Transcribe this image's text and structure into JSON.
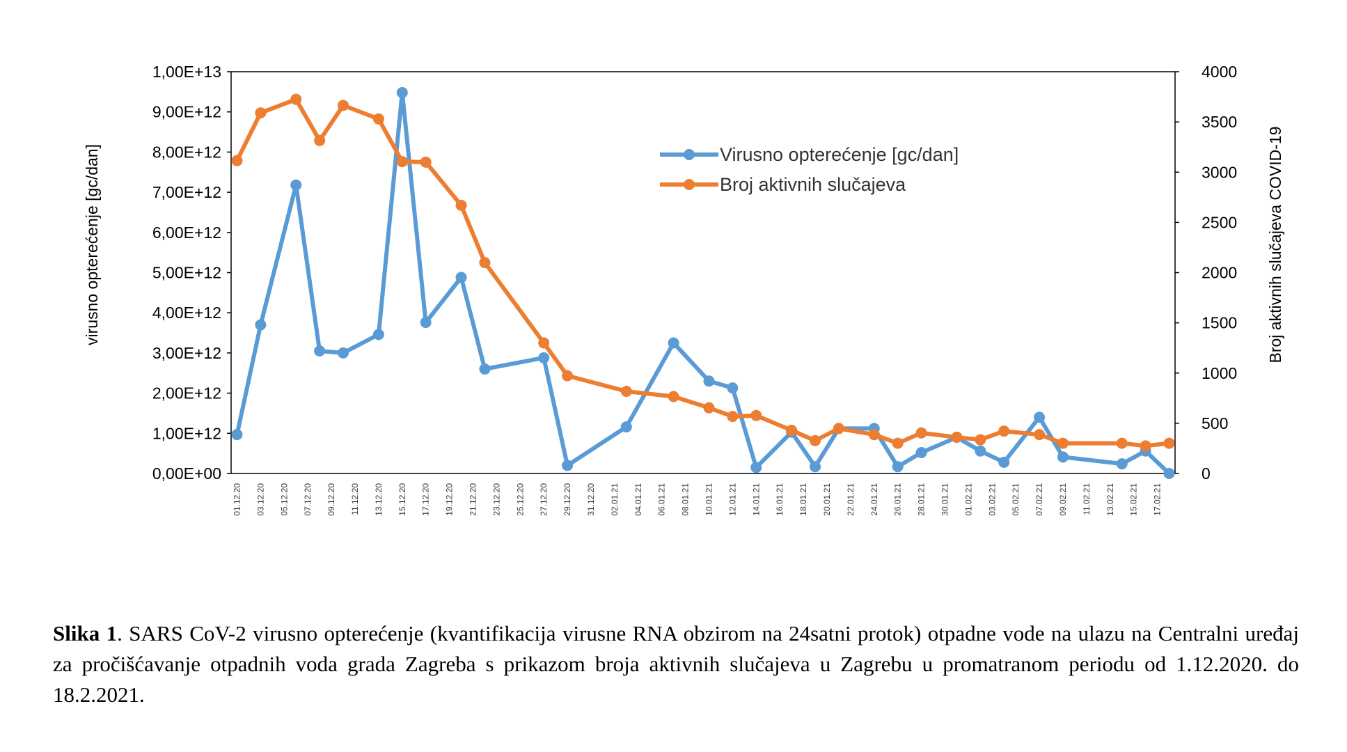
{
  "chart_data": {
    "type": "line",
    "title": "",
    "xlabel": "",
    "ylabel": "virusno opterećenje [gc/dan]",
    "y2label": "Broj aktivnih slučajeva COVID-19",
    "ylim": [
      0,
      10000000000000.0
    ],
    "y2lim": [
      0,
      4000
    ],
    "yticks": [
      "0,00E+00",
      "1,00E+12",
      "2,00E+12",
      "3,00E+12",
      "4,00E+12",
      "5,00E+12",
      "6,00E+12",
      "7,00E+12",
      "8,00E+12",
      "9,00E+12",
      "1,00E+13"
    ],
    "y2ticks": [
      "0",
      "500",
      "1000",
      "1500",
      "2000",
      "2500",
      "3000",
      "3500",
      "4000"
    ],
    "xticks": [
      "01.12.20",
      "03.12.20",
      "05.12.20",
      "07.12.20",
      "09.12.20",
      "11.12.20",
      "13.12.20",
      "15.12.20",
      "17.12.20",
      "19.12.20",
      "21.12.20",
      "23.12.20",
      "25.12.20",
      "27.12.20",
      "29.12.20",
      "31.12.20",
      "02.01.21",
      "04.01.21",
      "06.01.21",
      "08.01.21",
      "10.01.21",
      "12.01.21",
      "14.01.21",
      "16.01.21",
      "18.01.21",
      "20.01.21",
      "22.01.21",
      "24.01.21",
      "26.01.21",
      "28.01.21",
      "30.01.21",
      "01.02.21",
      "03.02.21",
      "05.02.21",
      "07.02.21",
      "09.02.21",
      "11.02.21",
      "13.02.21",
      "15.02.21",
      "17.02.21"
    ],
    "grid": false,
    "legend_position": "top-center",
    "series": [
      {
        "name": "Virusno opterećenje [gc/dan]",
        "axis": "left",
        "color": "#5B9BD5",
        "points": [
          [
            "01.12.20",
            970000000000.0
          ],
          [
            "03.12.20",
            3700000000000.0
          ],
          [
            "06.12.20",
            7180000000000.0
          ],
          [
            "08.12.20",
            3050000000000.0
          ],
          [
            "10.12.20",
            3000000000000.0
          ],
          [
            "13.12.20",
            3460000000000.0
          ],
          [
            "15.12.20",
            9480000000000.0
          ],
          [
            "17.12.20",
            3760000000000.0
          ],
          [
            "20.12.20",
            4880000000000.0
          ],
          [
            "22.12.20",
            2600000000000.0
          ],
          [
            "27.12.20",
            2880000000000.0
          ],
          [
            "29.12.20",
            200000000000.0
          ],
          [
            "03.01.21",
            1160000000000.0
          ],
          [
            "07.01.21",
            3250000000000.0
          ],
          [
            "10.01.21",
            2300000000000.0
          ],
          [
            "12.01.21",
            2130000000000.0
          ],
          [
            "14.01.21",
            150000000000.0
          ],
          [
            "17.01.21",
            1030000000000.0
          ],
          [
            "19.01.21",
            170000000000.0
          ],
          [
            "21.01.21",
            1120000000000.0
          ],
          [
            "24.01.21",
            1120000000000.0
          ],
          [
            "26.01.21",
            170000000000.0
          ],
          [
            "28.01.21",
            520000000000.0
          ],
          [
            "31.01.21",
            900000000000.0
          ],
          [
            "02.02.21",
            560000000000.0
          ],
          [
            "04.02.21",
            280000000000.0
          ],
          [
            "07.02.21",
            1400000000000.0
          ],
          [
            "09.02.21",
            410000000000.0
          ],
          [
            "14.02.21",
            240000000000.0
          ],
          [
            "16.02.21",
            560000000000.0
          ],
          [
            "18.02.21",
            0.0
          ]
        ]
      },
      {
        "name": "Broj aktivnih slučajeva",
        "axis": "right",
        "color": "#ED7D31",
        "points": [
          [
            "01.12.20",
            3115
          ],
          [
            "03.12.20",
            3590
          ],
          [
            "06.12.20",
            3725
          ],
          [
            "08.12.20",
            3315
          ],
          [
            "10.12.20",
            3665
          ],
          [
            "13.12.20",
            3530
          ],
          [
            "15.12.20",
            3105
          ],
          [
            "17.12.20",
            3100
          ],
          [
            "20.12.20",
            2670
          ],
          [
            "22.12.20",
            2100
          ],
          [
            "27.12.20",
            1300
          ],
          [
            "29.12.20",
            973
          ],
          [
            "03.01.21",
            818
          ],
          [
            "07.01.21",
            766
          ],
          [
            "10.01.21",
            654
          ],
          [
            "12.01.21",
            568
          ],
          [
            "14.01.21",
            577
          ],
          [
            "17.01.21",
            430
          ],
          [
            "19.01.21",
            327
          ],
          [
            "21.01.21",
            448
          ],
          [
            "24.01.21",
            387
          ],
          [
            "26.01.21",
            301
          ],
          [
            "28.01.21",
            404
          ],
          [
            "31.01.21",
            361
          ],
          [
            "02.02.21",
            336
          ],
          [
            "04.02.21",
            422
          ],
          [
            "07.02.21",
            387
          ],
          [
            "09.02.21",
            301
          ],
          [
            "14.02.21",
            301
          ],
          [
            "16.02.21",
            275
          ],
          [
            "18.02.21",
            301
          ]
        ]
      }
    ]
  },
  "caption": {
    "label": "Slika 1",
    "text": ". SARS CoV-2 virusno opterećenje (kvantifikacija virusne RNA obzirom na 24satni protok) otpadne vode na ulazu na Centralni uređaj za pročišćavanje otpadnih voda grada Zagreba s prikazom broja aktivnih slučajeva u Zagrebu u promatranom periodu od 1.12.2020. do 18.2.2021."
  }
}
